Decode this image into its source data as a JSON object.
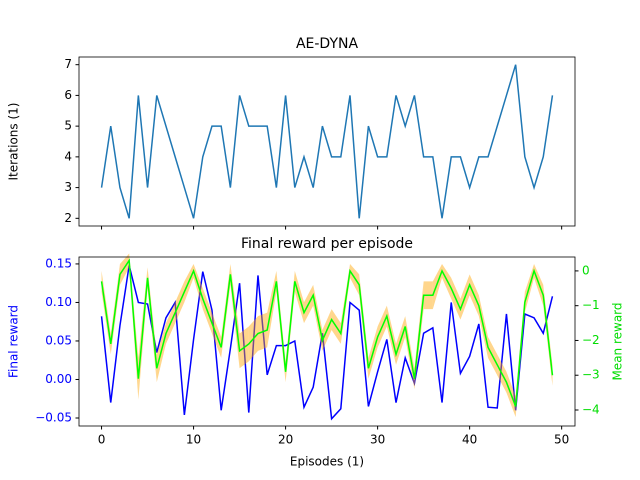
{
  "chart_data": [
    {
      "type": "line",
      "title": "AE-DYNA",
      "ylabel": "Iterations (1)",
      "x": [
        0,
        1,
        2,
        3,
        4,
        5,
        6,
        7,
        8,
        9,
        10,
        11,
        12,
        13,
        14,
        15,
        16,
        17,
        18,
        19,
        20,
        21,
        22,
        23,
        24,
        25,
        26,
        27,
        28,
        29,
        30,
        31,
        32,
        33,
        34,
        35,
        36,
        37,
        38,
        39,
        40,
        41,
        42,
        43,
        44,
        45,
        46,
        47,
        48,
        49
      ],
      "series": [
        {
          "name": "Iterations",
          "color": "#1f77b4",
          "values": [
            3,
            5,
            3,
            2,
            6,
            3,
            6,
            5,
            4,
            3,
            2,
            4,
            5,
            5,
            3,
            6,
            5,
            5,
            5,
            3,
            6,
            3,
            4,
            3,
            5,
            4,
            4,
            6,
            2,
            5,
            4,
            4,
            6,
            5,
            6,
            4,
            4,
            2,
            4,
            4,
            3,
            4,
            4,
            5,
            6,
            7,
            4,
            3,
            4,
            6
          ]
        }
      ],
      "xlim": [
        -2.45,
        51.45
      ],
      "ylim": [
        1.75,
        7.25
      ],
      "xticks": [
        0,
        10,
        20,
        30,
        40,
        50
      ],
      "yticks": [
        2,
        3,
        4,
        5,
        6,
        7
      ],
      "show_xtick_labels": false
    },
    {
      "type": "line",
      "title": "Final reward per episode",
      "xlabel": "Episodes (1)",
      "ylabel": "Final reward",
      "y2label": "Mean reward",
      "ylabel_color": "#0000ff",
      "y2label_color": "#00dd00",
      "x": [
        0,
        1,
        2,
        3,
        4,
        5,
        6,
        7,
        8,
        9,
        10,
        11,
        12,
        13,
        14,
        15,
        16,
        17,
        18,
        19,
        20,
        21,
        22,
        23,
        24,
        25,
        26,
        27,
        28,
        29,
        30,
        31,
        32,
        33,
        34,
        35,
        36,
        37,
        38,
        39,
        40,
        41,
        42,
        43,
        44,
        45,
        46,
        47,
        48,
        49
      ],
      "series": [
        {
          "name": "Final reward",
          "color": "#0000ff",
          "values": [
            0.082,
            -0.03,
            0.07,
            0.148,
            0.1,
            0.098,
            0.035,
            0.08,
            0.1,
            -0.046,
            0.052,
            0.14,
            0.09,
            -0.04,
            0.04,
            0.125,
            -0.043,
            0.135,
            0.006,
            0.044,
            0.044,
            0.05,
            -0.036,
            -0.01,
            0.06,
            -0.051,
            -0.038,
            0.1,
            0.09,
            -0.035,
            0.01,
            0.052,
            -0.03,
            0.028,
            -0.005,
            0.06,
            0.067,
            -0.03,
            0.1,
            0.008,
            0.03,
            0.072,
            -0.036,
            -0.037,
            0.085,
            -0.04,
            0.085,
            0.08,
            0.06,
            0.108
          ]
        },
        {
          "name": "Mean reward",
          "color": "#00ff00",
          "axis": "y2",
          "band_color": "#ffa500",
          "values": [
            -0.3,
            -2.1,
            -0.1,
            0.3,
            -3.1,
            -0.2,
            -2.8,
            -1.8,
            -1.2,
            -0.6,
            0.0,
            -0.8,
            -1.5,
            -2.2,
            -0.1,
            -2.3,
            -2.1,
            -1.8,
            -1.7,
            -0.3,
            -2.9,
            -0.3,
            -1.2,
            -0.7,
            -2.0,
            -1.4,
            -1.8,
            0.0,
            -0.4,
            -2.8,
            -1.9,
            -1.3,
            -2.4,
            -1.6,
            -3.1,
            -0.7,
            -0.7,
            0.0,
            -0.5,
            -1.1,
            -0.4,
            -1.0,
            -2.2,
            -2.7,
            -3.2,
            -3.9,
            -0.9,
            0.0,
            -0.7,
            -3.0
          ],
          "std": [
            0.3,
            0.3,
            0.3,
            0.2,
            0.6,
            0.3,
            0.4,
            0.3,
            0.3,
            0.3,
            0.2,
            0.3,
            0.3,
            0.3,
            0.3,
            0.5,
            0.5,
            0.5,
            0.5,
            0.3,
            0.3,
            0.3,
            0.3,
            0.3,
            0.3,
            0.3,
            0.3,
            0.2,
            0.3,
            0.3,
            0.3,
            0.3,
            0.3,
            0.3,
            0.3,
            0.4,
            0.4,
            0.2,
            0.3,
            0.3,
            0.3,
            0.3,
            0.3,
            0.3,
            0.3,
            0.3,
            0.3,
            0.2,
            0.3,
            0.3
          ]
        }
      ],
      "xlim": [
        -2.45,
        51.45
      ],
      "ylim": [
        -0.0604,
        0.159
      ],
      "y2lim": [
        -4.46,
        0.4
      ],
      "xticks": [
        0,
        10,
        20,
        30,
        40,
        50
      ],
      "yticks": [
        {
          "value": -0.05,
          "label": "−0.05"
        },
        {
          "value": 0,
          "label": "0.00"
        },
        {
          "value": 0.05,
          "label": "0.05"
        },
        {
          "value": 0.1,
          "label": "0.10"
        },
        {
          "value": 0.15,
          "label": "0.15"
        }
      ],
      "y2ticks": [
        0,
        {
          "value": -1,
          "label": "−1"
        },
        {
          "value": -2,
          "label": "−2"
        },
        {
          "value": -3,
          "label": "−3"
        },
        {
          "value": -4,
          "label": "−4"
        }
      ],
      "show_xtick_labels": true
    }
  ]
}
